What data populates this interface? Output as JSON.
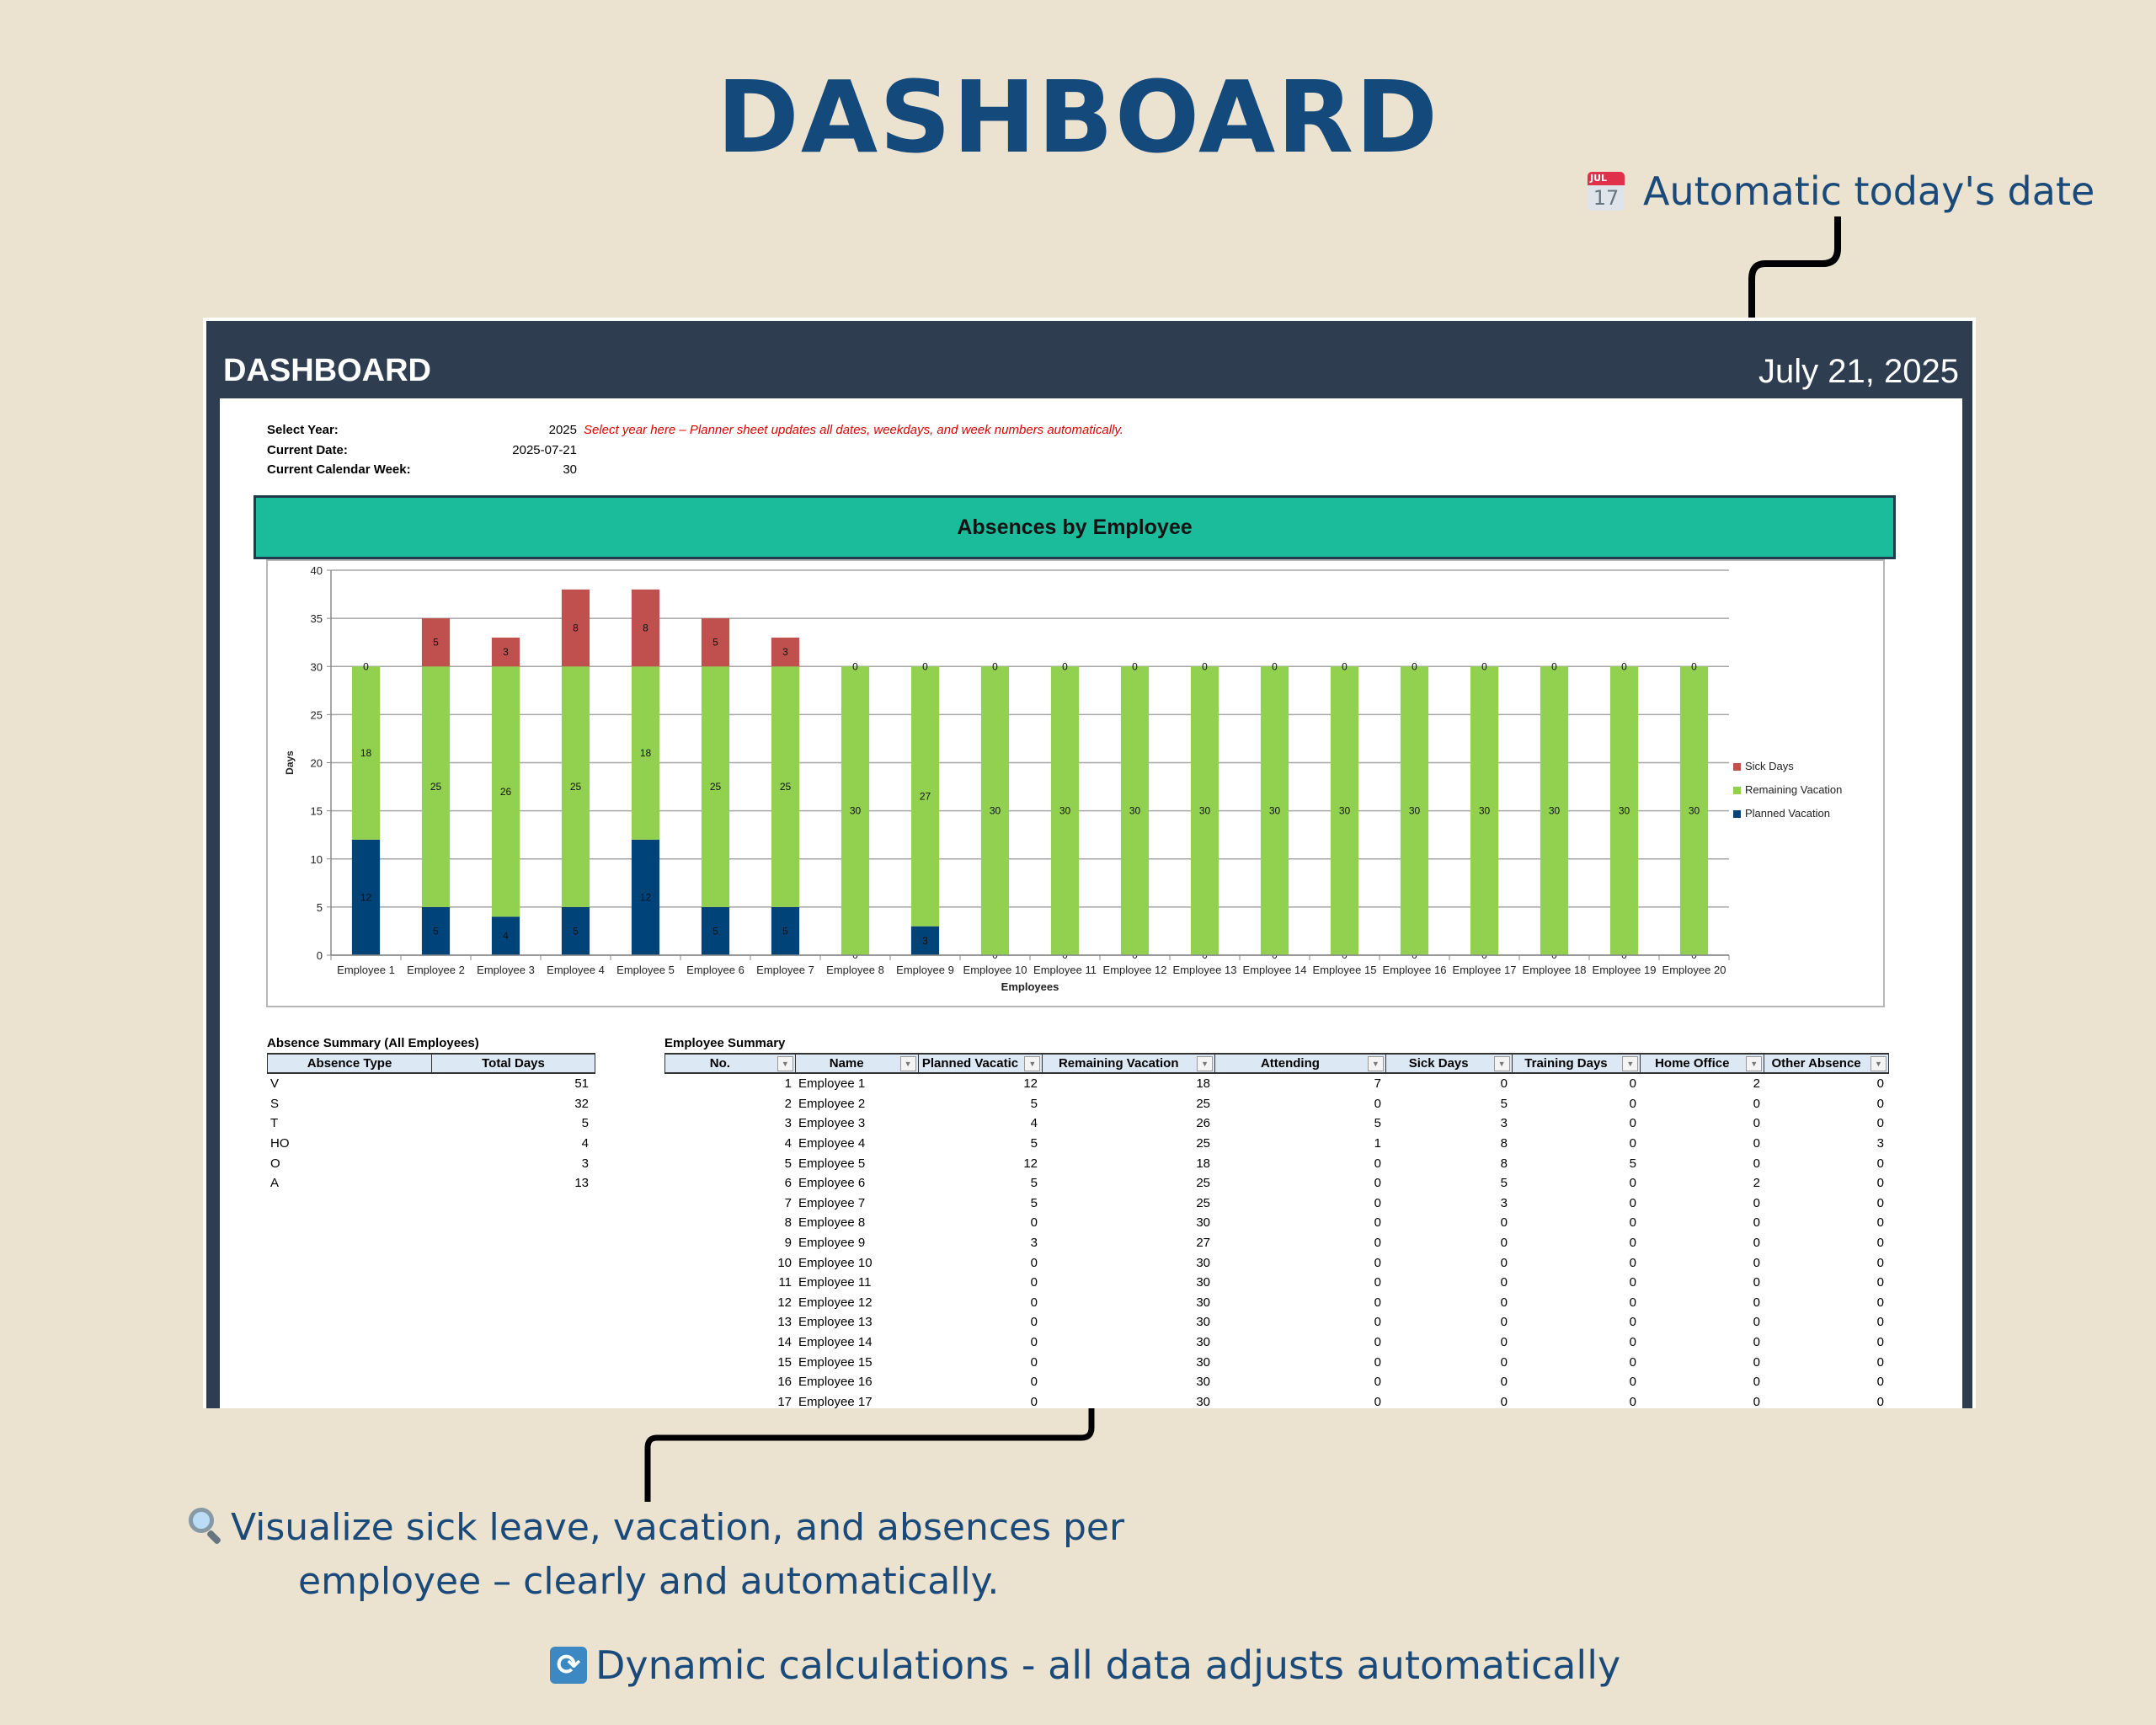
{
  "hero": {
    "title": "DASHBOARD"
  },
  "callouts": {
    "date": {
      "icon": "calendar-icon",
      "icon_month": "JUL",
      "icon_day": "17",
      "text": "Automatic today's date"
    },
    "visualize": {
      "icon": "magnifier-icon",
      "line1": "Visualize sick leave, vacation, and absences per",
      "line2": "employee – clearly and automatically."
    },
    "dynamic": {
      "icon": "refresh-icon",
      "icon_glyph": "⟳",
      "text": "Dynamic calculations - all data adjusts automatically"
    }
  },
  "sheet": {
    "title": "DASHBOARD",
    "date": "July 21, 2025",
    "meta": {
      "select_year_label": "Select Year:",
      "select_year_value": "2025",
      "select_year_note": "Select year here – Planner sheet updates all dates, weekdays, and week numbers automatically.",
      "current_date_label": "Current Date:",
      "current_date_value": "2025-07-21",
      "current_week_label": "Current Calendar Week:",
      "current_week_value": "30"
    },
    "chart_banner": "Absences by Employee",
    "absence_summary": {
      "caption": "Absence Summary (All Employees)",
      "headers": [
        "Absence Type",
        "Total Days"
      ],
      "rows": [
        [
          "V",
          "51"
        ],
        [
          "S",
          "32"
        ],
        [
          "T",
          "5"
        ],
        [
          "HO",
          "4"
        ],
        [
          "O",
          "3"
        ],
        [
          "A",
          "13"
        ]
      ]
    },
    "employee_summary": {
      "caption": "Employee Summary",
      "headers": [
        "No.",
        "Name",
        "Planned Vacatic",
        "Remaining Vacation",
        "Attending",
        "Sick Days",
        "Training Days",
        "Home Office",
        "Other Absence"
      ],
      "rows": [
        [
          "1",
          "Employee 1",
          "12",
          "18",
          "7",
          "0",
          "0",
          "2",
          "0"
        ],
        [
          "2",
          "Employee 2",
          "5",
          "25",
          "0",
          "5",
          "0",
          "0",
          "0"
        ],
        [
          "3",
          "Employee 3",
          "4",
          "26",
          "5",
          "3",
          "0",
          "0",
          "0"
        ],
        [
          "4",
          "Employee 4",
          "5",
          "25",
          "1",
          "8",
          "0",
          "0",
          "3"
        ],
        [
          "5",
          "Employee 5",
          "12",
          "18",
          "0",
          "8",
          "5",
          "0",
          "0"
        ],
        [
          "6",
          "Employee 6",
          "5",
          "25",
          "0",
          "5",
          "0",
          "2",
          "0"
        ],
        [
          "7",
          "Employee 7",
          "5",
          "25",
          "0",
          "3",
          "0",
          "0",
          "0"
        ],
        [
          "8",
          "Employee 8",
          "0",
          "30",
          "0",
          "0",
          "0",
          "0",
          "0"
        ],
        [
          "9",
          "Employee 9",
          "3",
          "27",
          "0",
          "0",
          "0",
          "0",
          "0"
        ],
        [
          "10",
          "Employee 10",
          "0",
          "30",
          "0",
          "0",
          "0",
          "0",
          "0"
        ],
        [
          "11",
          "Employee 11",
          "0",
          "30",
          "0",
          "0",
          "0",
          "0",
          "0"
        ],
        [
          "12",
          "Employee 12",
          "0",
          "30",
          "0",
          "0",
          "0",
          "0",
          "0"
        ],
        [
          "13",
          "Employee 13",
          "0",
          "30",
          "0",
          "0",
          "0",
          "0",
          "0"
        ],
        [
          "14",
          "Employee 14",
          "0",
          "30",
          "0",
          "0",
          "0",
          "0",
          "0"
        ],
        [
          "15",
          "Employee 15",
          "0",
          "30",
          "0",
          "0",
          "0",
          "0",
          "0"
        ],
        [
          "16",
          "Employee 16",
          "0",
          "30",
          "0",
          "0",
          "0",
          "0",
          "0"
        ],
        [
          "17",
          "Employee 17",
          "0",
          "30",
          "0",
          "0",
          "0",
          "0",
          "0"
        ]
      ]
    }
  },
  "chart_data": {
    "type": "bar",
    "stacked": true,
    "title": "Absences by Employee",
    "xlabel": "Employees",
    "ylabel": "Days",
    "ylim": [
      0,
      40
    ],
    "yticks": [
      0,
      5,
      10,
      15,
      20,
      25,
      30,
      35,
      40
    ],
    "grid": true,
    "legend_position": "right",
    "categories": [
      "Employee 1",
      "Employee 2",
      "Employee 3",
      "Employee 4",
      "Employee 5",
      "Employee 6",
      "Employee 7",
      "Employee 8",
      "Employee 9",
      "Employee 10",
      "Employee 11",
      "Employee 12",
      "Employee 13",
      "Employee 14",
      "Employee 15",
      "Employee 16",
      "Employee 17",
      "Employee 18",
      "Employee 19",
      "Employee 20"
    ],
    "series": [
      {
        "name": "Planned Vacation",
        "color": "#004379",
        "values": [
          12,
          5,
          4,
          5,
          12,
          5,
          5,
          0,
          3,
          0,
          0,
          0,
          0,
          0,
          0,
          0,
          0,
          0,
          0,
          0
        ]
      },
      {
        "name": "Remaining Vacation",
        "color": "#92d050",
        "values": [
          18,
          25,
          26,
          25,
          18,
          25,
          25,
          30,
          27,
          30,
          30,
          30,
          30,
          30,
          30,
          30,
          30,
          30,
          30,
          30
        ]
      },
      {
        "name": "Sick Days",
        "color": "#c0504d",
        "values": [
          0,
          5,
          3,
          8,
          8,
          5,
          3,
          0,
          0,
          0,
          0,
          0,
          0,
          0,
          0,
          0,
          0,
          0,
          0,
          0
        ]
      }
    ],
    "legend": [
      "Sick Days",
      "Remaining Vacation",
      "Planned Vacation"
    ]
  }
}
